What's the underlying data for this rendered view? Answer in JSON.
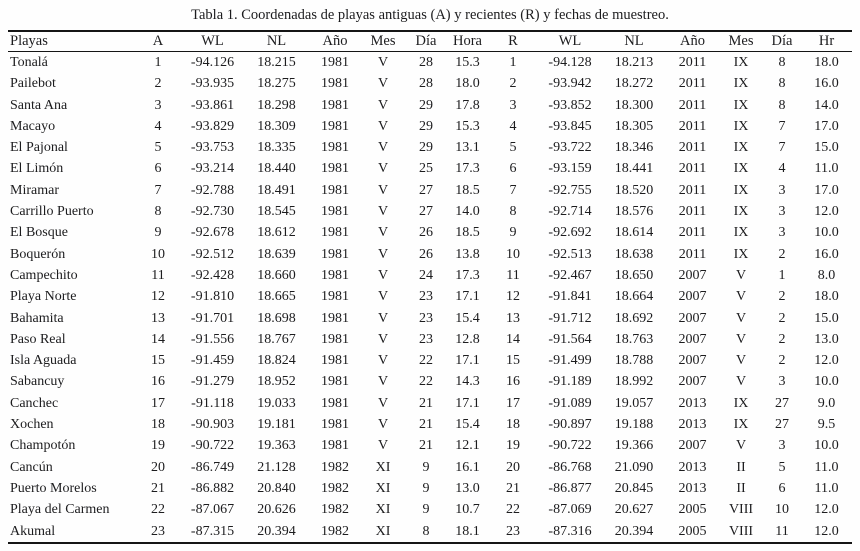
{
  "caption": "Tabla 1. Coordenadas de playas antiguas (A) y recientes (R) y fechas de muestreo.",
  "table": {
    "columns": [
      "Playas",
      "A",
      "WL",
      "NL",
      "Año",
      "Mes",
      "Día",
      "Hora",
      "R",
      "WL",
      "NL",
      "Año",
      "Mes",
      "Día",
      "Hr"
    ],
    "rows": [
      [
        "Tonalá",
        "1",
        "-94.126",
        "18.215",
        "1981",
        "V",
        "28",
        "15.3",
        "1",
        "-94.128",
        "18.213",
        "2011",
        "IX",
        "8",
        "18.0"
      ],
      [
        "Pailebot",
        "2",
        "-93.935",
        "18.275",
        "1981",
        "V",
        "28",
        "18.0",
        "2",
        "-93.942",
        "18.272",
        "2011",
        "IX",
        "8",
        "16.0"
      ],
      [
        "Santa Ana",
        "3",
        "-93.861",
        "18.298",
        "1981",
        "V",
        "29",
        "17.8",
        "3",
        "-93.852",
        "18.300",
        "2011",
        "IX",
        "8",
        "14.0"
      ],
      [
        "Macayo",
        "4",
        "-93.829",
        "18.309",
        "1981",
        "V",
        "29",
        "15.3",
        "4",
        "-93.845",
        "18.305",
        "2011",
        "IX",
        "7",
        "17.0"
      ],
      [
        "El Pajonal",
        "5",
        "-93.753",
        "18.335",
        "1981",
        "V",
        "29",
        "13.1",
        "5",
        "-93.722",
        "18.346",
        "2011",
        "IX",
        "7",
        "15.0"
      ],
      [
        "El Limón",
        "6",
        "-93.214",
        "18.440",
        "1981",
        "V",
        "25",
        "17.3",
        "6",
        "-93.159",
        "18.441",
        "2011",
        "IX",
        "4",
        "11.0"
      ],
      [
        "Miramar",
        "7",
        "-92.788",
        "18.491",
        "1981",
        "V",
        "27",
        "18.5",
        "7",
        "-92.755",
        "18.520",
        "2011",
        "IX",
        "3",
        "17.0"
      ],
      [
        "Carrillo Puerto",
        "8",
        "-92.730",
        "18.545",
        "1981",
        "V",
        "27",
        "14.0",
        "8",
        "-92.714",
        "18.576",
        "2011",
        "IX",
        "3",
        "12.0"
      ],
      [
        "El Bosque",
        "9",
        "-92.678",
        "18.612",
        "1981",
        "V",
        "26",
        "18.5",
        "9",
        "-92.692",
        "18.614",
        "2011",
        "IX",
        "3",
        "10.0"
      ],
      [
        "Boquerón",
        "10",
        "-92.512",
        "18.639",
        "1981",
        "V",
        "26",
        "13.8",
        "10",
        "-92.513",
        "18.638",
        "2011",
        "IX",
        "2",
        "16.0"
      ],
      [
        "Campechito",
        "11",
        "-92.428",
        "18.660",
        "1981",
        "V",
        "24",
        "17.3",
        "11",
        "-92.467",
        "18.650",
        "2007",
        "V",
        "1",
        "8.0"
      ],
      [
        "Playa Norte",
        "12",
        "-91.810",
        "18.665",
        "1981",
        "V",
        "23",
        "17.1",
        "12",
        "-91.841",
        "18.664",
        "2007",
        "V",
        "2",
        "18.0"
      ],
      [
        "Bahamita",
        "13",
        "-91.701",
        "18.698",
        "1981",
        "V",
        "23",
        "15.4",
        "13",
        "-91.712",
        "18.692",
        "2007",
        "V",
        "2",
        "15.0"
      ],
      [
        "Paso Real",
        "14",
        "-91.556",
        "18.767",
        "1981",
        "V",
        "23",
        "12.8",
        "14",
        "-91.564",
        "18.763",
        "2007",
        "V",
        "2",
        "13.0"
      ],
      [
        "Isla Aguada",
        "15",
        "-91.459",
        "18.824",
        "1981",
        "V",
        "22",
        "17.1",
        "15",
        "-91.499",
        "18.788",
        "2007",
        "V",
        "2",
        "12.0"
      ],
      [
        "Sabancuy",
        "16",
        "-91.279",
        "18.952",
        "1981",
        "V",
        "22",
        "14.3",
        "16",
        "-91.189",
        "18.992",
        "2007",
        "V",
        "3",
        "10.0"
      ],
      [
        "Canchec",
        "17",
        "-91.118",
        "19.033",
        "1981",
        "V",
        "21",
        "17.1",
        "17",
        "-91.089",
        "19.057",
        "2013",
        "IX",
        "27",
        "9.0"
      ],
      [
        "Xochen",
        "18",
        "-90.903",
        "19.181",
        "1981",
        "V",
        "21",
        "15.4",
        "18",
        "-90.897",
        "19.188",
        "2013",
        "IX",
        "27",
        "9.5"
      ],
      [
        "Champotón",
        "19",
        "-90.722",
        "19.363",
        "1981",
        "V",
        "21",
        "12.1",
        "19",
        "-90.722",
        "19.366",
        "2007",
        "V",
        "3",
        "10.0"
      ],
      [
        "Cancún",
        "20",
        "-86.749",
        "21.128",
        "1982",
        "XI",
        "9",
        "16.1",
        "20",
        "-86.768",
        "21.090",
        "2013",
        "II",
        "5",
        "11.0"
      ],
      [
        "Puerto Morelos",
        "21",
        "-86.882",
        "20.840",
        "1982",
        "XI",
        "9",
        "13.0",
        "21",
        "-86.877",
        "20.845",
        "2013",
        "II",
        "6",
        "11.0"
      ],
      [
        "Playa del Carmen",
        "22",
        "-87.067",
        "20.626",
        "1982",
        "XI",
        "9",
        "10.7",
        "22",
        "-87.069",
        "20.627",
        "2005",
        "VIII",
        "10",
        "12.0"
      ],
      [
        "Akumal",
        "23",
        "-87.315",
        "20.394",
        "1982",
        "XI",
        "8",
        "18.1",
        "23",
        "-87.316",
        "20.394",
        "2005",
        "VIII",
        "11",
        "12.0"
      ]
    ]
  }
}
